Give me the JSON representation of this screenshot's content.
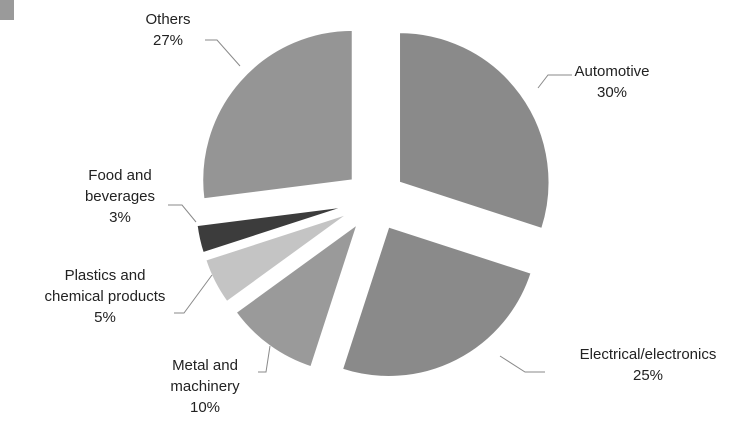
{
  "chart_data": {
    "type": "pie",
    "exploded": true,
    "start_angle_deg": 0,
    "direction": "clockwise",
    "slices": [
      {
        "label_lines": [
          "Automotive"
        ],
        "value_label": "30%",
        "value": 30,
        "color": "#8a8a8a"
      },
      {
        "label_lines": [
          "Electrical/electronics"
        ],
        "value_label": "25%",
        "value": 25,
        "color": "#8a8a8a"
      },
      {
        "label_lines": [
          "Metal and",
          "machinery"
        ],
        "value_label": "10%",
        "value": 10,
        "color": "#9a9a9a"
      },
      {
        "label_lines": [
          "Plastics and",
          "chemical products"
        ],
        "value_label": "5%",
        "value": 5,
        "color": "#c4c4c4"
      },
      {
        "label_lines": [
          "Food and",
          "beverages"
        ],
        "value_label": "3%",
        "value": 3,
        "color": "#3c3c3c"
      },
      {
        "label_lines": [
          "Others"
        ],
        "value_label": "27%",
        "value": 27,
        "color": "#959595"
      }
    ]
  }
}
